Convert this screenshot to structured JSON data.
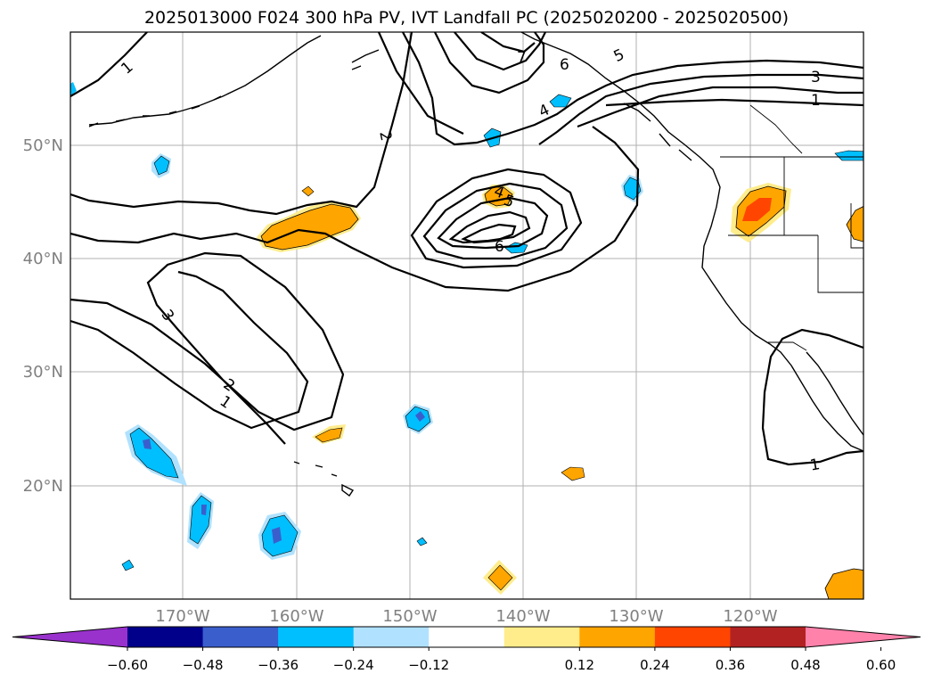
{
  "title": "2025013000 F024 300 hPa PV, IVT Landfall PC (2025020200 - 2025020500)",
  "lat_labels": [
    "50°N",
    "40°N",
    "30°N",
    "20°N"
  ],
  "lon_labels": [
    "170°W",
    "160°W",
    "150°W",
    "140°W",
    "130°W",
    "120°W"
  ],
  "contour_labels": [
    "1",
    "2",
    "3",
    "1",
    "2",
    "1",
    "7",
    "6",
    "5",
    "4",
    "4",
    "5",
    "6",
    "3",
    "1",
    "1"
  ],
  "colorbar": {
    "tick_labels": [
      "−0.60",
      "−0.48",
      "−0.36",
      "−0.24",
      "−0.12",
      "0.12",
      "0.24",
      "0.36",
      "0.48",
      "0.60"
    ],
    "colors": [
      "#9932cc",
      "#00008b",
      "#3a5fcd",
      "#00bfff",
      "#b0e2ff",
      "#ffffff",
      "#ffec8b",
      "#ffa500",
      "#ff4500",
      "#b22222",
      "#ff82ab"
    ]
  }
}
